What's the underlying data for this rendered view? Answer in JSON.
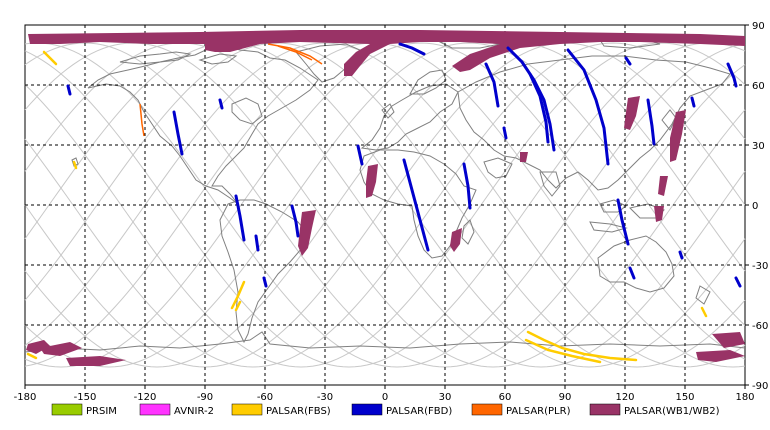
{
  "map": {
    "lon_ticks": [
      "-180",
      "-150",
      "-120",
      "-90",
      "-60",
      "-30",
      "0",
      "30",
      "60",
      "90",
      "120",
      "150",
      "180"
    ],
    "lat_ticks": [
      "90",
      "60",
      "30",
      "0",
      "-30",
      "-60",
      "-90"
    ],
    "extent": {
      "lon": [
        -180,
        180
      ],
      "lat": [
        -90,
        90
      ]
    },
    "grid": true,
    "colors": {
      "background": "#ffffff",
      "coastline": "#808080",
      "orbit": "#c8c8c8",
      "grid": "#000000"
    }
  },
  "legend": [
    {
      "label": "PRSIM",
      "color": "#99cc00"
    },
    {
      "label": "AVNIR-2",
      "color": "#ff33ff"
    },
    {
      "label": "PALSAR(FBS)",
      "color": "#ffcc00"
    },
    {
      "label": "PALSAR(FBD)",
      "color": "#0000cc"
    },
    {
      "label": "PALSAR(PLR)",
      "color": "#ff6600"
    },
    {
      "label": "PALSAR(WB1/WB2)",
      "color": "#993366"
    }
  ]
}
